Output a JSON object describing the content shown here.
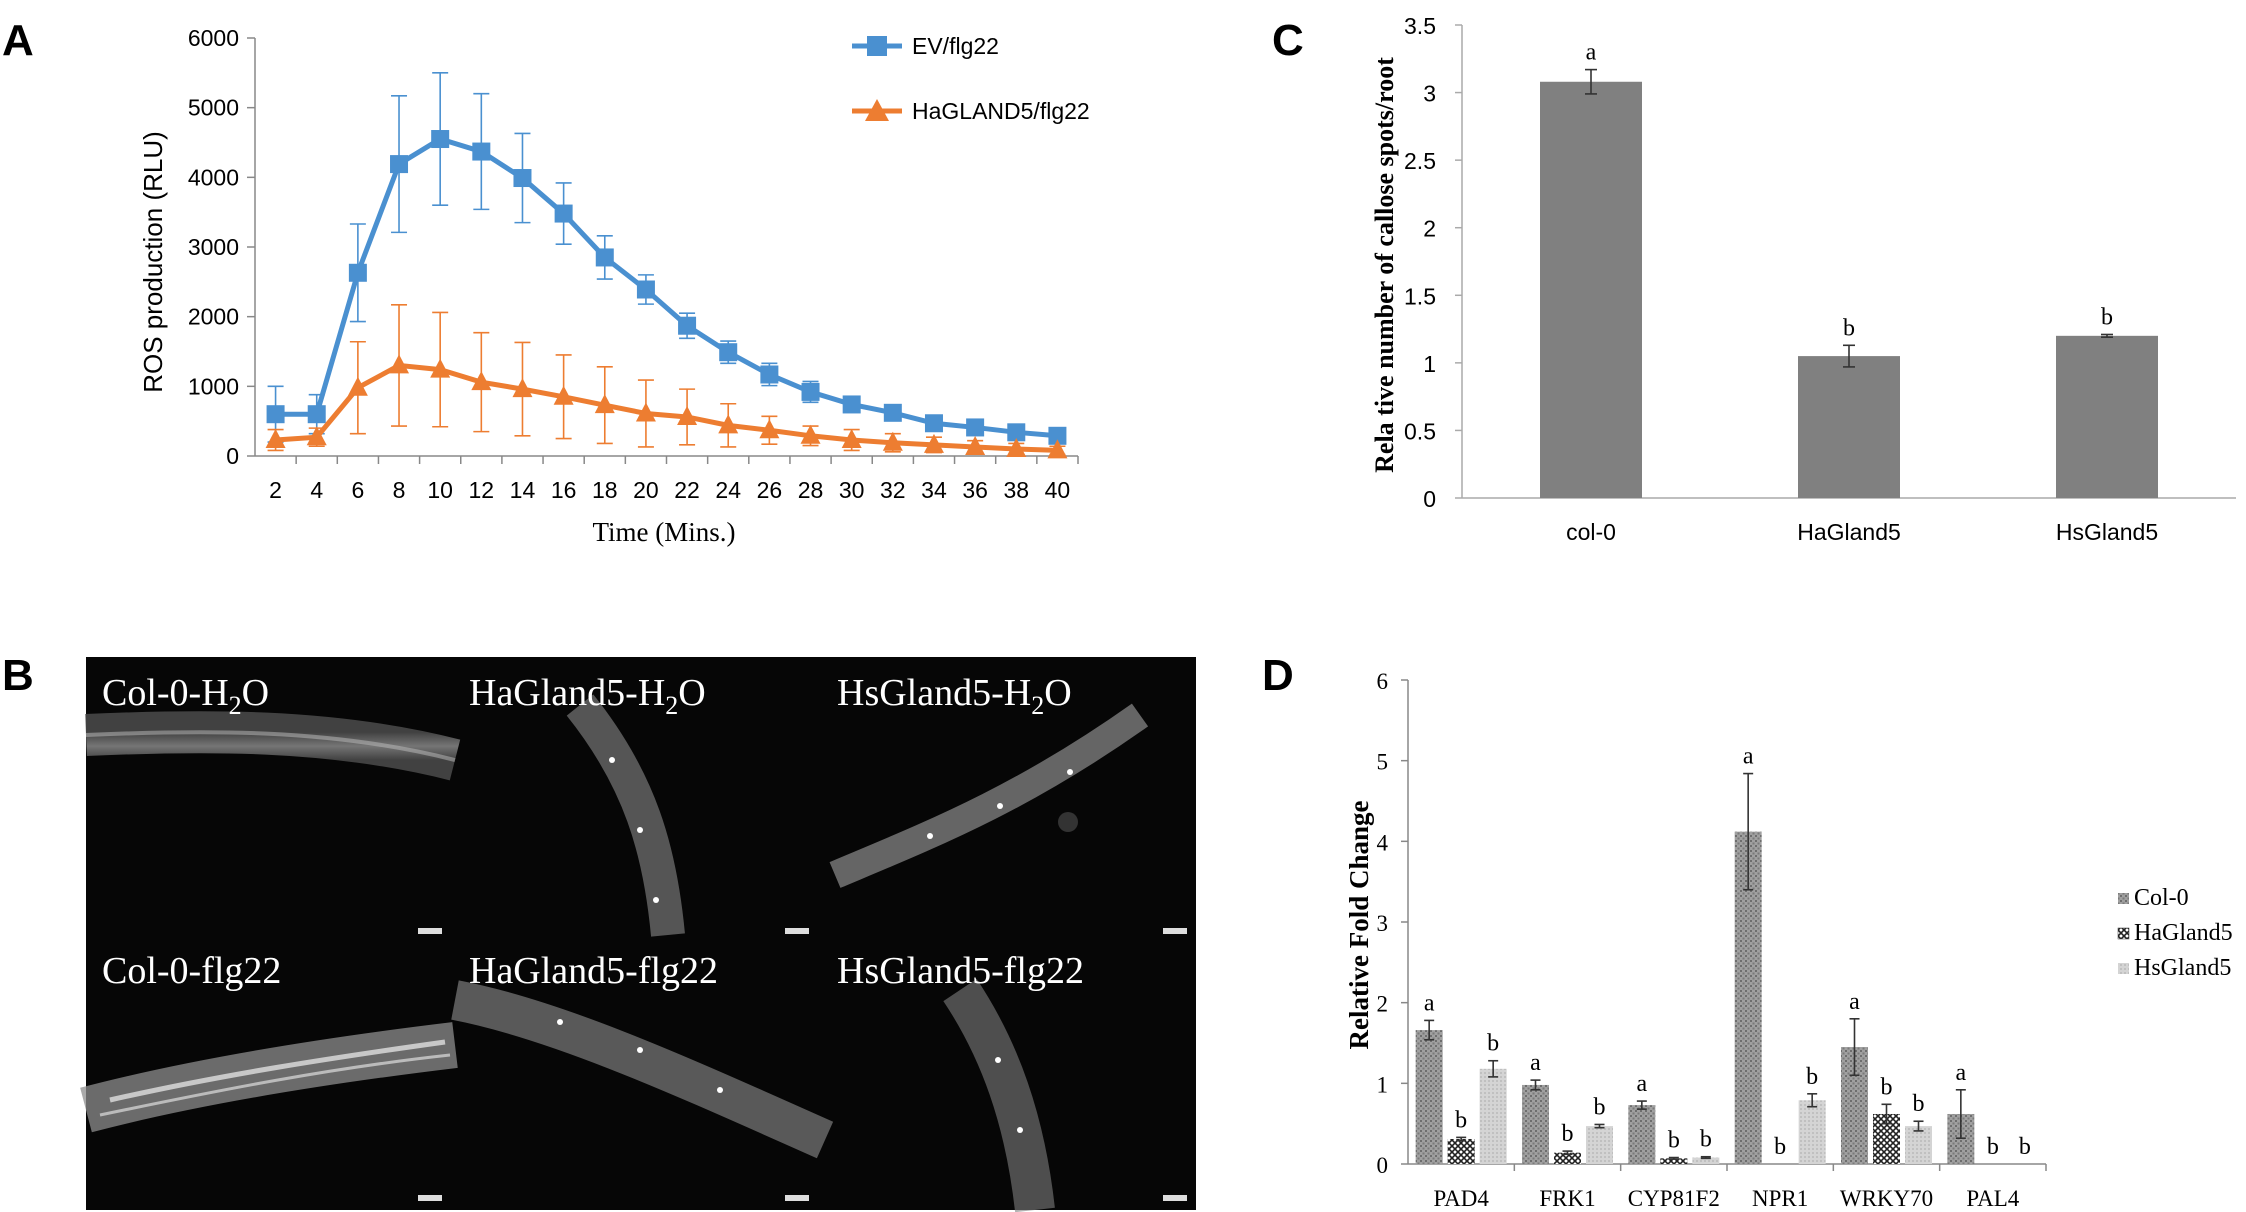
{
  "panels": {
    "A": "A",
    "B": "B",
    "C": "C",
    "D": "D"
  },
  "chart_data": [
    {
      "panel": "A",
      "type": "line",
      "title": "",
      "xlabel": "Time (Mins.)",
      "ylabel": "ROS production (RLU)",
      "x": [
        2,
        4,
        6,
        8,
        10,
        12,
        14,
        16,
        18,
        20,
        22,
        24,
        26,
        28,
        30,
        32,
        34,
        36,
        38,
        40
      ],
      "ylim": [
        0,
        6000
      ],
      "yticks": [
        0,
        1000,
        2000,
        3000,
        4000,
        5000,
        6000
      ],
      "legend_position": "top-right",
      "series": [
        {
          "name": "EV/flg22",
          "color": "#4a90d0",
          "marker": "square",
          "values": [
            600,
            600,
            2630,
            4190,
            4550,
            4370,
            3990,
            3480,
            2850,
            2390,
            1870,
            1490,
            1170,
            920,
            740,
            620,
            470,
            410,
            340,
            290
          ],
          "errors": [
            400,
            280,
            700,
            980,
            950,
            830,
            640,
            440,
            310,
            210,
            180,
            160,
            160,
            150,
            90,
            80,
            70,
            60,
            60,
            60
          ]
        },
        {
          "name": "HaGLAND5/flg22",
          "color": "#ed7d31",
          "marker": "triangle",
          "values": [
            230,
            270,
            980,
            1300,
            1240,
            1060,
            960,
            850,
            730,
            610,
            560,
            440,
            370,
            290,
            230,
            190,
            160,
            130,
            100,
            80
          ],
          "errors": [
            150,
            130,
            660,
            870,
            820,
            710,
            670,
            600,
            550,
            480,
            400,
            310,
            200,
            140,
            150,
            130,
            110,
            90,
            80,
            60
          ]
        }
      ]
    },
    {
      "panel": "C",
      "type": "bar",
      "title": "",
      "xlabel": "",
      "ylabel": "Rela tive number of callose spots/root",
      "categories": [
        "col-0",
        "HaGland5",
        "HsGland5"
      ],
      "values": [
        3.08,
        1.05,
        1.2
      ],
      "errors": [
        0.09,
        0.08,
        0.01
      ],
      "letters": [
        "a",
        "b",
        "b"
      ],
      "ylim": [
        0,
        3.5
      ],
      "yticks": [
        "0",
        "0.5",
        "1",
        "1.5",
        "2",
        "2.5",
        "3",
        "3.5"
      ],
      "color": "#808080"
    },
    {
      "panel": "D",
      "type": "bar",
      "title": "",
      "xlabel": "",
      "ylabel": "Relative Fold Change",
      "categories": [
        "PAD4",
        "FRK1",
        "CYP81F2",
        "NPR1",
        "WRKY70",
        "PAL4"
      ],
      "ylim": [
        0,
        6
      ],
      "yticks": [
        "0",
        "1",
        "2",
        "3",
        "4",
        "5",
        "6"
      ],
      "legend_position": "right",
      "series": [
        {
          "name": "Col-0",
          "color": "#8c8c8c",
          "pattern": "dots",
          "values": [
            1.66,
            0.98,
            0.73,
            4.12,
            1.45,
            0.62
          ],
          "errors": [
            0.12,
            0.06,
            0.05,
            0.72,
            0.35,
            0.3
          ],
          "letters": [
            "a",
            "a",
            "a",
            "a",
            "a",
            "a"
          ]
        },
        {
          "name": "HaGland5",
          "color": "#404040",
          "pattern": "checker",
          "values": [
            0.31,
            0.14,
            0.07,
            0.0,
            0.62,
            0.0
          ],
          "errors": [
            0.02,
            0.02,
            0.01,
            0.0,
            0.12,
            0.0
          ],
          "letters": [
            "b",
            "b",
            "b",
            "b",
            "b",
            "b"
          ]
        },
        {
          "name": "HsGland5",
          "color": "#c8c8c8",
          "pattern": "light",
          "values": [
            1.18,
            0.47,
            0.08,
            0.79,
            0.47,
            0.0
          ],
          "errors": [
            0.1,
            0.02,
            0.01,
            0.08,
            0.06,
            0.0
          ],
          "letters": [
            "b",
            "b",
            "b",
            "b",
            "b",
            "b"
          ]
        }
      ]
    }
  ],
  "micrographs": [
    {
      "label_main": "Col-0-H",
      "sub": "2",
      "label_tail": "O"
    },
    {
      "label_main": "HaGland5-H",
      "sub": "2",
      "label_tail": "O"
    },
    {
      "label_main": "HsGland5-H",
      "sub": "2",
      "label_tail": "O"
    },
    {
      "label_main": "Col-0-flg22",
      "sub": "",
      "label_tail": ""
    },
    {
      "label_main": "HaGland5-flg22",
      "sub": "",
      "label_tail": ""
    },
    {
      "label_main": "HsGland5-flg22",
      "sub": "",
      "label_tail": ""
    }
  ]
}
